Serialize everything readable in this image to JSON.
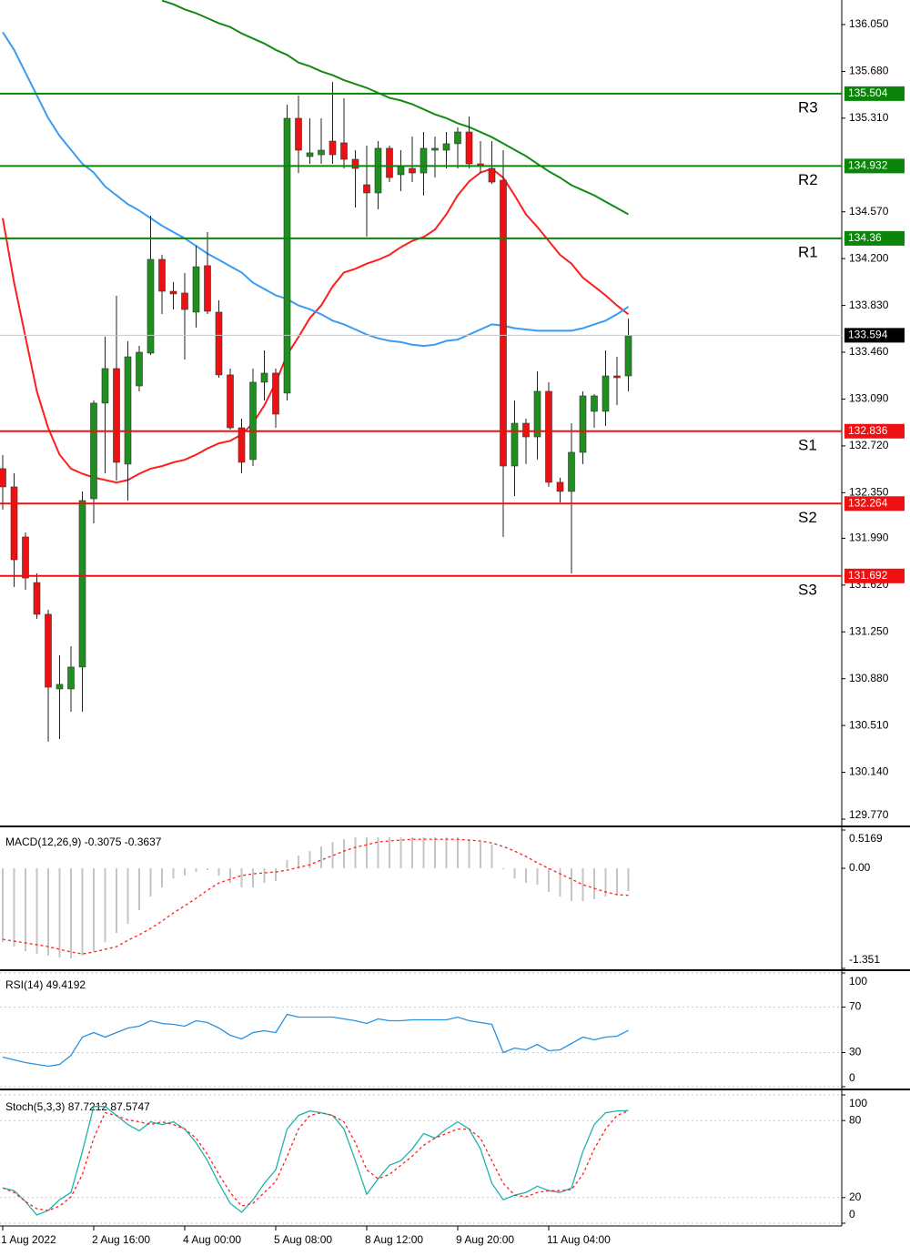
{
  "chart_data": [
    {
      "type": "candlestick",
      "categories": [
        "1 Aug 2022",
        null,
        null,
        null,
        null,
        null,
        null,
        null,
        "2 Aug 16:00",
        null,
        null,
        null,
        null,
        null,
        null,
        null,
        "4 Aug 00:00",
        null,
        null,
        null,
        null,
        null,
        null,
        null,
        "5 Aug 08:00",
        null,
        null,
        null,
        null,
        null,
        null,
        null,
        "8 Aug 12:00",
        null,
        null,
        null,
        null,
        null,
        null,
        null,
        "9 Aug 20:00",
        null,
        null,
        null,
        null,
        null,
        null,
        null,
        "11 Aug 04:00",
        null,
        null,
        null,
        null,
        null,
        null,
        null
      ],
      "open": [
        132.54,
        132.396,
        132.0,
        131.64,
        131.389,
        130.799,
        130.799,
        130.972,
        132.302,
        133.058,
        133.331,
        132.576,
        133.194,
        133.453,
        134.194,
        133.942,
        133.928,
        133.777,
        134.144,
        133.777,
        133.281,
        132.863,
        132.612,
        133.223,
        133.295,
        133.137,
        135.309,
        135.007,
        135.021,
        135.129,
        135.115,
        134.985,
        134.784,
        134.719,
        135.072,
        134.863,
        134.913,
        134.877,
        135.057,
        135.057,
        135.108,
        135.201,
        134.949,
        134.913,
        134.82,
        132.561,
        132.899,
        132.791,
        133.151,
        132.432,
        132.36,
        132.669,
        132.993,
        132.993,
        133.273,
        133.273
      ],
      "high": [
        132.647,
        132.504,
        132.036,
        131.712,
        131.425,
        131.065,
        131.137,
        132.36,
        133.079,
        133.583,
        133.906,
        133.547,
        133.511,
        134.539,
        134.23,
        134.014,
        134.086,
        134.302,
        134.41,
        133.87,
        133.331,
        132.935,
        133.331,
        133.475,
        133.331,
        135.417,
        135.489,
        135.309,
        135.309,
        135.597,
        135.467,
        135.057,
        135.093,
        135.129,
        135.093,
        135.057,
        135.165,
        135.201,
        135.165,
        135.201,
        135.237,
        135.323,
        135.129,
        135.129,
        135.057,
        133.079,
        132.935,
        133.309,
        133.223,
        132.468,
        132.899,
        133.151,
        133.129,
        133.475,
        133.424,
        133.726
      ],
      "low": [
        132.216,
        131.605,
        131.583,
        131.353,
        130.382,
        130.403,
        130.619,
        130.619,
        132.108,
        132.504,
        132.446,
        132.288,
        133.151,
        133.439,
        133.762,
        133.798,
        133.403,
        133.655,
        133.762,
        133.259,
        132.849,
        132.504,
        132.561,
        133.079,
        132.863,
        133.079,
        134.877,
        134.949,
        134.949,
        134.949,
        134.913,
        134.604,
        134.374,
        134.59,
        134.805,
        134.733,
        134.805,
        134.698,
        134.841,
        134.913,
        134.913,
        134.913,
        134.877,
        134.79,
        132.0,
        132.324,
        132.576,
        132.612,
        132.396,
        132.273,
        131.712,
        132.576,
        132.863,
        132.878,
        133.043,
        133.151
      ],
      "close": [
        132.396,
        131.82,
        131.676,
        131.389,
        130.813,
        130.835,
        130.972,
        132.288,
        133.058,
        133.331,
        132.59,
        133.424,
        133.46,
        134.194,
        133.942,
        133.921,
        133.798,
        134.136,
        133.784,
        133.281,
        132.863,
        132.59,
        133.223,
        133.295,
        132.971,
        135.309,
        135.057,
        135.036,
        135.057,
        135.021,
        134.985,
        134.913,
        134.719,
        135.072,
        134.841,
        134.928,
        134.877,
        135.072,
        135.072,
        135.108,
        135.201,
        134.949,
        134.928,
        134.805,
        132.561,
        132.899,
        132.791,
        133.151,
        132.432,
        132.36,
        132.669,
        133.115,
        133.115,
        133.273,
        133.259,
        133.594
      ],
      "up_color": "#1f8f1f",
      "down_color": "#ee1111",
      "series": [
        {
          "color": "#ff1e1e",
          "values": [
            134.52,
            134.01,
            133.58,
            133.15,
            132.86,
            132.65,
            132.54,
            132.5,
            132.47,
            132.45,
            132.43,
            132.45,
            132.5,
            132.54,
            132.56,
            132.59,
            132.61,
            132.65,
            132.7,
            132.74,
            132.76,
            132.81,
            132.9,
            133.04,
            133.22,
            133.44,
            133.58,
            133.73,
            133.83,
            133.98,
            134.09,
            134.12,
            134.16,
            134.19,
            134.23,
            134.29,
            134.34,
            134.37,
            134.43,
            134.55,
            134.7,
            134.81,
            134.88,
            134.91,
            134.84,
            134.7,
            134.55,
            134.45,
            134.34,
            134.23,
            134.16,
            134.05,
            133.98,
            133.91,
            133.83,
            133.76
          ]
        },
        {
          "color": "#3b9cf0",
          "values": [
            135.99,
            135.85,
            135.67,
            135.49,
            135.31,
            135.17,
            135.06,
            134.95,
            134.88,
            134.77,
            134.7,
            134.63,
            134.58,
            134.52,
            134.46,
            134.41,
            134.36,
            134.3,
            134.24,
            134.19,
            134.14,
            134.09,
            134.01,
            133.96,
            133.91,
            133.88,
            133.83,
            133.8,
            133.76,
            133.71,
            133.68,
            133.64,
            133.6,
            133.57,
            133.55,
            133.54,
            133.52,
            133.51,
            133.52,
            133.55,
            133.56,
            133.6,
            133.64,
            133.68,
            133.67,
            133.65,
            133.64,
            133.63,
            133.63,
            133.63,
            133.63,
            133.65,
            133.68,
            133.71,
            133.76,
            133.82
          ]
        },
        {
          "color": "#138a13",
          "values": [
            null,
            null,
            null,
            null,
            null,
            null,
            null,
            null,
            null,
            null,
            null,
            null,
            null,
            null,
            136.24,
            136.21,
            136.17,
            136.14,
            136.1,
            136.06,
            136.03,
            135.98,
            135.94,
            135.9,
            135.85,
            135.81,
            135.75,
            135.72,
            135.68,
            135.65,
            135.61,
            135.58,
            135.55,
            135.51,
            135.47,
            135.45,
            135.42,
            135.38,
            135.34,
            135.31,
            135.27,
            135.24,
            135.2,
            135.16,
            135.11,
            135.06,
            135.01,
            134.95,
            134.89,
            134.84,
            134.78,
            134.74,
            134.7,
            134.65,
            134.6,
            134.55
          ]
        }
      ],
      "levels": [
        {
          "name": "R3",
          "value": 135.504,
          "color": "#0a850a"
        },
        {
          "name": "R2",
          "value": 134.932,
          "color": "#0a850a"
        },
        {
          "name": "R1",
          "value": 134.36,
          "color": "#0a850a"
        },
        {
          "name": "S1",
          "value": 132.836,
          "color": "#ee1111"
        },
        {
          "name": "S2",
          "value": 132.264,
          "color": "#ee1111"
        },
        {
          "name": "S3",
          "value": 131.692,
          "color": "#ee1111"
        }
      ],
      "last_price": 133.594,
      "ylim": [
        129.734,
        136.244
      ],
      "yticks": [
        {
          "value": 136.05,
          "label": "136.050"
        },
        {
          "value": 135.68,
          "label": "135.680"
        },
        {
          "value": 135.31,
          "label": "135.310"
        },
        {
          "value": 134.57,
          "label": "134.570"
        },
        {
          "value": 134.2,
          "label": "134.200"
        },
        {
          "value": 133.83,
          "label": "133.830"
        },
        {
          "value": 133.46,
          "label": "133.460"
        },
        {
          "value": 133.09,
          "label": "133.090"
        },
        {
          "value": 132.72,
          "label": "132.720"
        },
        {
          "value": 132.35,
          "label": "132.350"
        },
        {
          "value": 131.99,
          "label": "131.990"
        },
        {
          "value": 131.62,
          "label": "131.620"
        },
        {
          "value": 131.25,
          "label": "131.250"
        },
        {
          "value": 130.88,
          "label": "130.880"
        },
        {
          "value": 130.51,
          "label": "130.510"
        },
        {
          "value": 130.14,
          "label": "130.140"
        },
        {
          "value": 129.77,
          "label": "129.770"
        }
      ],
      "grid": false
    },
    {
      "type": "line",
      "title": "MACD(12,26,9) -0.3075 -0.3637",
      "series": [
        {
          "kind": "bar",
          "color": "#c4c4c4",
          "values": [
            -0.995,
            -1.057,
            -1.118,
            -1.155,
            -1.179,
            -1.204,
            -1.216,
            -1.179,
            -1.118,
            -0.995,
            -0.872,
            -0.749,
            -0.565,
            -0.381,
            -0.258,
            -0.135,
            -0.098,
            -0.049,
            -0.025,
            -0.098,
            -0.197,
            -0.258,
            -0.258,
            -0.197,
            -0.172,
            0.111,
            0.172,
            0.233,
            0.295,
            0.356,
            0.393,
            0.418,
            0.418,
            0.418,
            0.418,
            0.418,
            0.418,
            0.418,
            0.418,
            0.418,
            0.418,
            0.393,
            0.356,
            0.319,
            -0.012,
            -0.135,
            -0.197,
            -0.221,
            -0.319,
            -0.381,
            -0.442,
            -0.442,
            -0.418,
            -0.381,
            -0.356,
            -0.3075
          ]
        },
        {
          "kind": "line",
          "dash": true,
          "color": "#ff2020",
          "values": [
            -0.958,
            -0.983,
            -1.007,
            -1.032,
            -1.057,
            -1.093,
            -1.13,
            -1.155,
            -1.13,
            -1.093,
            -1.057,
            -0.971,
            -0.897,
            -0.811,
            -0.713,
            -0.602,
            -0.504,
            -0.405,
            -0.295,
            -0.197,
            -0.147,
            -0.098,
            -0.074,
            -0.061,
            -0.049,
            -0.025,
            0.012,
            0.049,
            0.111,
            0.172,
            0.233,
            0.283,
            0.319,
            0.356,
            0.369,
            0.381,
            0.393,
            0.393,
            0.393,
            0.393,
            0.393,
            0.381,
            0.369,
            0.344,
            0.295,
            0.233,
            0.16,
            0.074,
            0,
            -0.074,
            -0.147,
            -0.221,
            -0.27,
            -0.319,
            -0.356,
            -0.3637
          ]
        }
      ],
      "ylim": [
        -1.351,
        0.5169
      ],
      "yticks": [
        0.5169,
        {
          "value": 0,
          "label": "0.00"
        },
        -1.351
      ],
      "grid": false
    },
    {
      "type": "line",
      "title": "RSI(14) 49.4192",
      "series": [
        {
          "kind": "line",
          "color": "#2a92e0",
          "values": [
            26.0,
            23.6,
            21.2,
            19.6,
            18.0,
            19.6,
            27.6,
            43.6,
            47.6,
            43.6,
            47.6,
            51.6,
            53.2,
            58.0,
            55.6,
            54.8,
            53.2,
            58.0,
            56.4,
            51.6,
            45.2,
            42.0,
            47.6,
            49.2,
            47.6,
            63.6,
            61.2,
            61.2,
            61.2,
            61.2,
            59.6,
            58.0,
            55.6,
            59.6,
            58.0,
            58.0,
            58.8,
            58.8,
            58.8,
            58.8,
            61.2,
            58.0,
            56.4,
            54.8,
            30.0,
            34.0,
            32.4,
            37.2,
            31.6,
            32.4,
            38.0,
            43.6,
            41.2,
            43.6,
            44.4,
            49.4192
          ]
        }
      ],
      "ylim": [
        0,
        100
      ],
      "yticks": [
        100,
        70,
        30,
        0
      ],
      "grid": true
    },
    {
      "type": "line",
      "title": "Stoch(5,3,3) 87.7212 87.5747",
      "series": [
        {
          "kind": "line",
          "color": "#20b2aa",
          "values": [
            27.5,
            25.4,
            16.9,
            6.4,
            9.9,
            18.3,
            24.0,
            55.8,
            91.0,
            91.0,
            84.0,
            76.9,
            72.0,
            79.0,
            76.9,
            79.0,
            73.4,
            62.8,
            48.7,
            31.1,
            15.5,
            8.5,
            18.3,
            31.1,
            41.6,
            73.4,
            84.0,
            87.5,
            86.1,
            84.0,
            73.4,
            48.7,
            22.6,
            34.6,
            45.2,
            48.7,
            57.9,
            69.9,
            66.3,
            73.4,
            79.0,
            73.4,
            57.9,
            31.1,
            18.3,
            21.9,
            24.0,
            28.9,
            25.4,
            24.0,
            27.5,
            55.8,
            76.9,
            86.1,
            87.5,
            87.7212
          ]
        },
        {
          "kind": "line",
          "dash": true,
          "color": "#ff2020",
          "values": [
            27.5,
            24.0,
            16.9,
            11.3,
            9.9,
            13.4,
            20.5,
            38.1,
            66.3,
            86.1,
            84.0,
            80.5,
            79.0,
            76.9,
            79.0,
            76.9,
            73.4,
            66.3,
            53.6,
            38.1,
            24.0,
            13.4,
            15.5,
            24.0,
            32.5,
            52.2,
            73.4,
            84.0,
            86.1,
            84.0,
            79.0,
            62.8,
            41.6,
            34.6,
            38.1,
            45.2,
            52.2,
            60.7,
            66.3,
            69.9,
            73.4,
            73.4,
            66.3,
            48.7,
            31.1,
            21.9,
            20.5,
            24.0,
            25.4,
            25.4,
            26.1,
            38.1,
            57.9,
            73.4,
            84.0,
            87.5747
          ]
        }
      ],
      "ylim": [
        0,
        100
      ],
      "yticks": [
        100,
        80,
        20,
        0
      ],
      "grid": true
    }
  ]
}
